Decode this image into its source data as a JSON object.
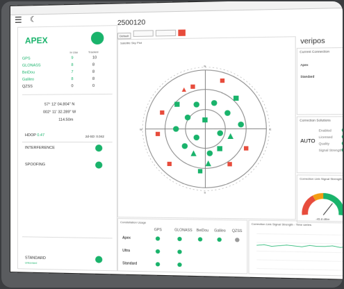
{
  "window": {
    "title_small": "",
    "heading": "2500120"
  },
  "toolbar": {
    "btn1": "Default",
    "btn2": "",
    "btn3": "",
    "btn4": ""
  },
  "left": {
    "title": "APEX",
    "header_used": "In Use",
    "header_tracked": "Tracked",
    "sats": [
      {
        "name": "GPS",
        "used": "9",
        "tracked": "10"
      },
      {
        "name": "GLONASS",
        "used": "8",
        "tracked": "8"
      },
      {
        "name": "BeiDou",
        "used": "7",
        "tracked": "8"
      },
      {
        "name": "Galileo",
        "used": "8",
        "tracked": "8"
      },
      {
        "name": "QZSS",
        "used": "0",
        "tracked": "0"
      }
    ],
    "lat": "57° 12' 04.804\" N",
    "lon": "002° 11' 32.289\" W",
    "alt": "114.50m",
    "hdop_label": "HDOP",
    "hdop_value": "0.47",
    "ratio": "2d-SD: 0.042",
    "interference": "INTERFERENCE",
    "spoofing": "SPOOFING",
    "standard": "STANDARD",
    "standard_sub": "Unlicensed"
  },
  "skyplot": {
    "title": "Satellite Sky Plot",
    "n": "N",
    "e": "E",
    "s": "S",
    "w": "W",
    "deg90": "90°"
  },
  "logo": {
    "text": "veripos"
  },
  "right_top": {
    "title": "Current Connection",
    "row1": "Apex",
    "row2": "Standard"
  },
  "right_mid": {
    "title": "Correction Solutions",
    "mode": "AUTO",
    "items": [
      "Enabled",
      "Licensed",
      "Quality",
      "Signal Strength"
    ]
  },
  "gauge": {
    "title": "Correction Link Signal Strength",
    "value": "-45.8 dBm",
    "color": "#19b36b"
  },
  "conn": {
    "title": "Constellation Usage",
    "cols": [
      "GPS",
      "GLONASS",
      "BeiDou",
      "Galileo",
      "QZSS"
    ],
    "rows": [
      "Apex",
      "Ultra",
      "Standard"
    ]
  },
  "signal": {
    "title": "Correction Link Signal Strength - Time series"
  }
}
